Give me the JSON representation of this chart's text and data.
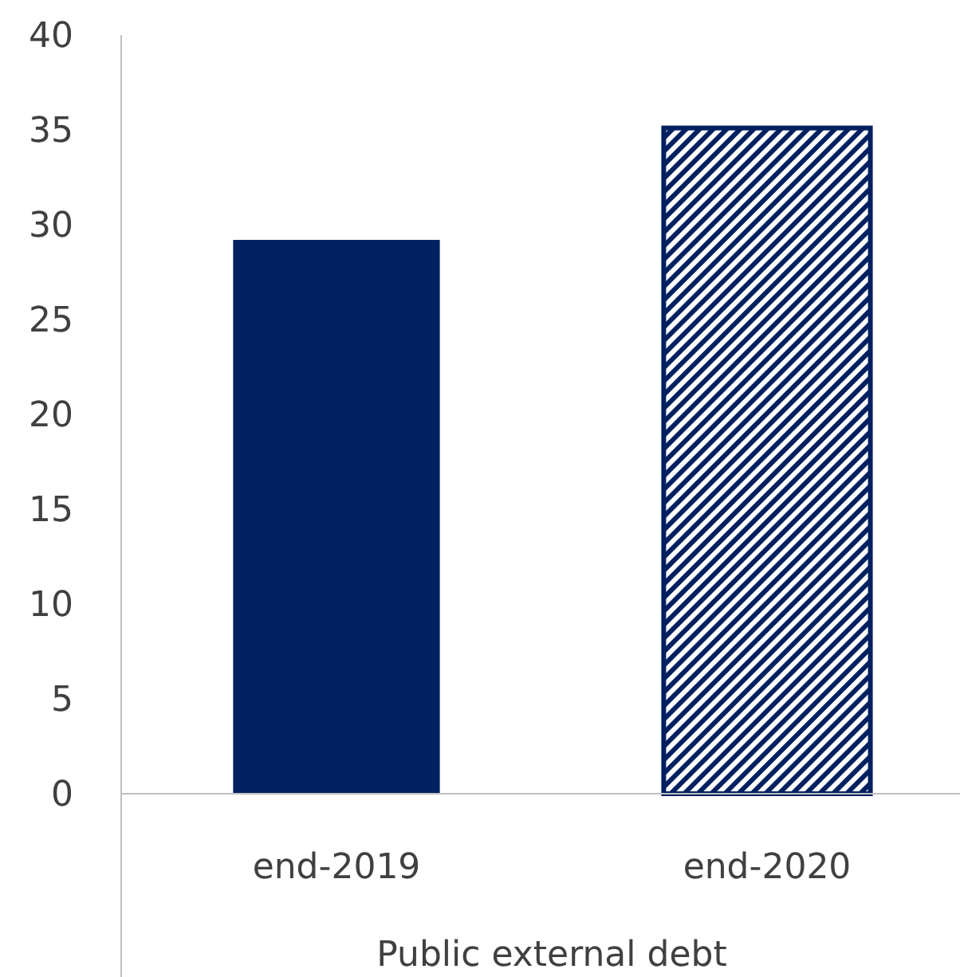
{
  "chart_data": {
    "type": "bar",
    "xlabel": "Public external debt",
    "categories": [
      "end-2019",
      "end-2020"
    ],
    "values": [
      29.2,
      35.1
    ],
    "colors": [
      "#002060",
      "#002060"
    ],
    "ylim": [
      0,
      40
    ],
    "yticks": [
      0,
      5,
      10,
      15,
      20,
      25,
      30,
      35,
      40
    ],
    "grid": false
  }
}
